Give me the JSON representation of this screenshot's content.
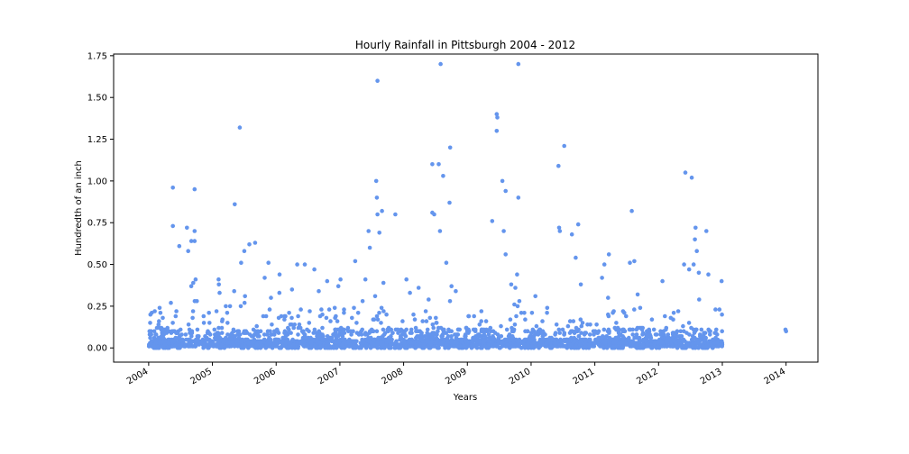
{
  "chart_data": {
    "type": "scatter",
    "title": "Hourly Rainfall in Pittsburgh 2004 - 2012",
    "xlabel": "Years",
    "ylabel": "Hundredth of an inch",
    "xlim": [
      2003.45,
      2014.5
    ],
    "ylim": [
      -0.085,
      1.76
    ],
    "xticks": [
      "2004",
      "2005",
      "2006",
      "2007",
      "2008",
      "2009",
      "2010",
      "2011",
      "2012",
      "2013",
      "2014"
    ],
    "yticks": [
      "0.00",
      "0.25",
      "0.50",
      "0.75",
      "1.00",
      "1.25",
      "1.50",
      "1.75"
    ],
    "grid": false,
    "point_color": "#6495ED",
    "notable_points": [
      {
        "x": 2004.38,
        "y": 0.96
      },
      {
        "x": 2004.38,
        "y": 0.73
      },
      {
        "x": 2004.48,
        "y": 0.61
      },
      {
        "x": 2004.6,
        "y": 0.72
      },
      {
        "x": 2004.67,
        "y": 0.64
      },
      {
        "x": 2004.72,
        "y": 0.95
      },
      {
        "x": 2004.72,
        "y": 0.7
      },
      {
        "x": 2004.72,
        "y": 0.64
      },
      {
        "x": 2004.62,
        "y": 0.58
      },
      {
        "x": 2005.35,
        "y": 0.86
      },
      {
        "x": 2005.43,
        "y": 1.32
      },
      {
        "x": 2005.5,
        "y": 0.58
      },
      {
        "x": 2005.58,
        "y": 0.62
      },
      {
        "x": 2005.67,
        "y": 0.63
      },
      {
        "x": 2005.45,
        "y": 0.51
      },
      {
        "x": 2005.88,
        "y": 0.51
      },
      {
        "x": 2006.33,
        "y": 0.5
      },
      {
        "x": 2006.45,
        "y": 0.5
      },
      {
        "x": 2006.6,
        "y": 0.47
      },
      {
        "x": 2006.8,
        "y": 0.4
      },
      {
        "x": 2007.24,
        "y": 0.52
      },
      {
        "x": 2007.45,
        "y": 0.7
      },
      {
        "x": 2007.47,
        "y": 0.6
      },
      {
        "x": 2007.59,
        "y": 1.6
      },
      {
        "x": 2007.57,
        "y": 1.0
      },
      {
        "x": 2007.58,
        "y": 0.9
      },
      {
        "x": 2007.66,
        "y": 0.82
      },
      {
        "x": 2007.59,
        "y": 0.8
      },
      {
        "x": 2007.62,
        "y": 0.69
      },
      {
        "x": 2007.87,
        "y": 0.8
      },
      {
        "x": 2008.45,
        "y": 1.1
      },
      {
        "x": 2008.55,
        "y": 1.1
      },
      {
        "x": 2008.58,
        "y": 1.7
      },
      {
        "x": 2008.62,
        "y": 1.03
      },
      {
        "x": 2008.45,
        "y": 0.81
      },
      {
        "x": 2008.48,
        "y": 0.8
      },
      {
        "x": 2008.57,
        "y": 0.7
      },
      {
        "x": 2008.73,
        "y": 1.2
      },
      {
        "x": 2008.72,
        "y": 0.87
      },
      {
        "x": 2008.67,
        "y": 0.51
      },
      {
        "x": 2009.39,
        "y": 0.76
      },
      {
        "x": 2009.46,
        "y": 1.4
      },
      {
        "x": 2009.47,
        "y": 1.38
      },
      {
        "x": 2009.46,
        "y": 1.3
      },
      {
        "x": 2009.55,
        "y": 1.0
      },
      {
        "x": 2009.6,
        "y": 0.94
      },
      {
        "x": 2009.57,
        "y": 0.7
      },
      {
        "x": 2009.6,
        "y": 0.56
      },
      {
        "x": 2009.8,
        "y": 1.7
      },
      {
        "x": 2009.8,
        "y": 0.9
      },
      {
        "x": 2010.43,
        "y": 1.09
      },
      {
        "x": 2010.52,
        "y": 1.21
      },
      {
        "x": 2010.44,
        "y": 0.72
      },
      {
        "x": 2010.45,
        "y": 0.7
      },
      {
        "x": 2010.64,
        "y": 0.68
      },
      {
        "x": 2010.74,
        "y": 0.74
      },
      {
        "x": 2010.7,
        "y": 0.54
      },
      {
        "x": 2011.15,
        "y": 0.5
      },
      {
        "x": 2011.22,
        "y": 0.56
      },
      {
        "x": 2011.58,
        "y": 0.82
      },
      {
        "x": 2011.55,
        "y": 0.51
      },
      {
        "x": 2011.62,
        "y": 0.52
      },
      {
        "x": 2012.42,
        "y": 1.05
      },
      {
        "x": 2012.52,
        "y": 1.02
      },
      {
        "x": 2012.4,
        "y": 0.5
      },
      {
        "x": 2012.48,
        "y": 0.47
      },
      {
        "x": 2012.58,
        "y": 0.72
      },
      {
        "x": 2012.57,
        "y": 0.65
      },
      {
        "x": 2012.6,
        "y": 0.58
      },
      {
        "x": 2012.75,
        "y": 0.7
      },
      {
        "x": 2012.55,
        "y": 0.5
      },
      {
        "x": 2014.0,
        "y": 0.1
      },
      {
        "x": 2013.99,
        "y": 0.11
      }
    ]
  }
}
